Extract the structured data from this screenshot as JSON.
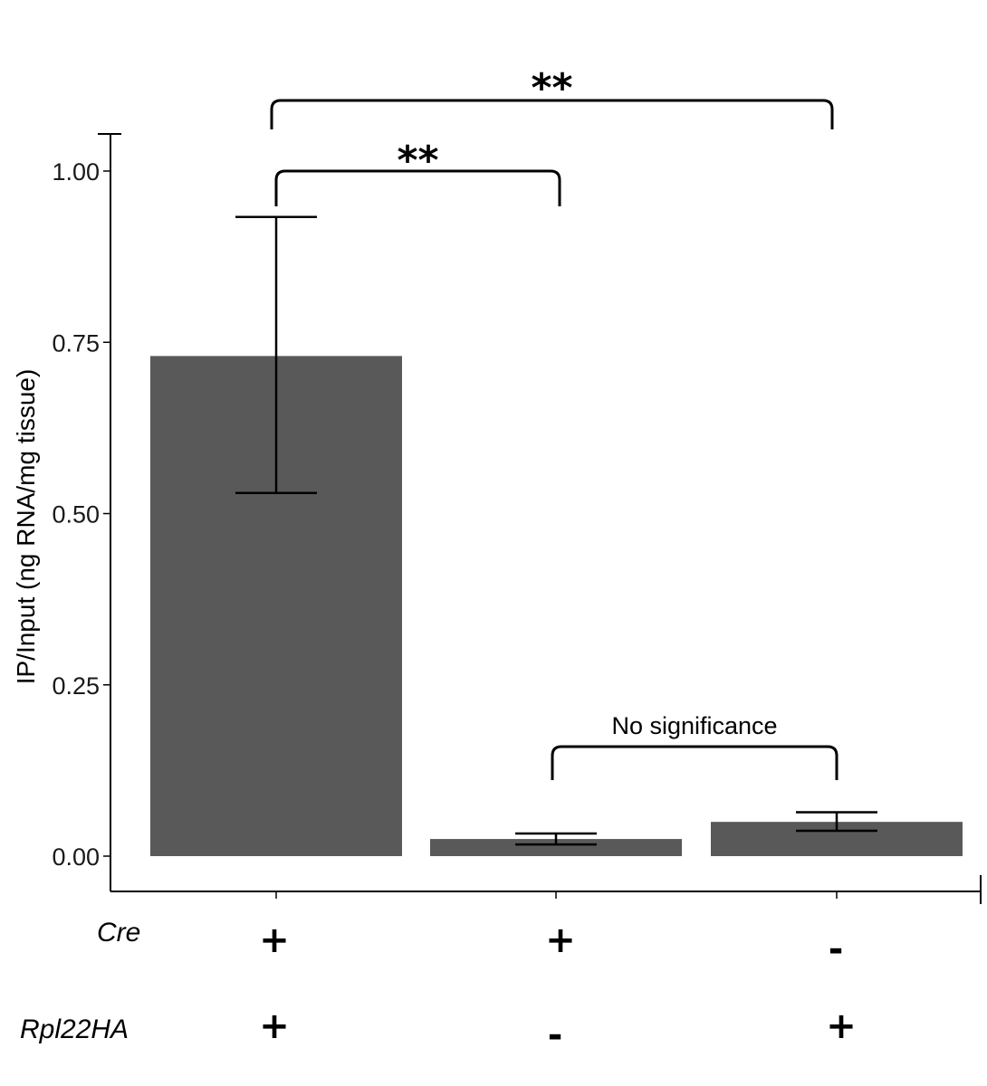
{
  "chart_data": {
    "type": "bar",
    "title": "",
    "xlabel": "",
    "ylabel": "IP/Input (ng RNA/mg tissue)",
    "ylim": [
      0,
      1.05
    ],
    "yticks": [
      0,
      0.25,
      0.5,
      0.75,
      1.0
    ],
    "ytick_labels": [
      "0.00",
      "0.25",
      "0.50",
      "0.75",
      "1.00"
    ],
    "values": [
      0.73,
      0.025,
      0.05
    ],
    "error_low": [
      0.53,
      0.017,
      0.037
    ],
    "error_high": [
      0.933,
      0.033,
      0.064
    ],
    "genotype_rows": [
      {
        "label": "Cre",
        "signs": [
          "+",
          "+",
          "-"
        ]
      },
      {
        "label": "Rpl22HA",
        "signs": [
          "+",
          "-",
          "+"
        ]
      }
    ],
    "annotations": [
      {
        "from": 0,
        "to": 1,
        "text": "**"
      },
      {
        "from": 0,
        "to": 2,
        "text": "**"
      },
      {
        "from": 1,
        "to": 2,
        "text": "No significance"
      }
    ]
  }
}
